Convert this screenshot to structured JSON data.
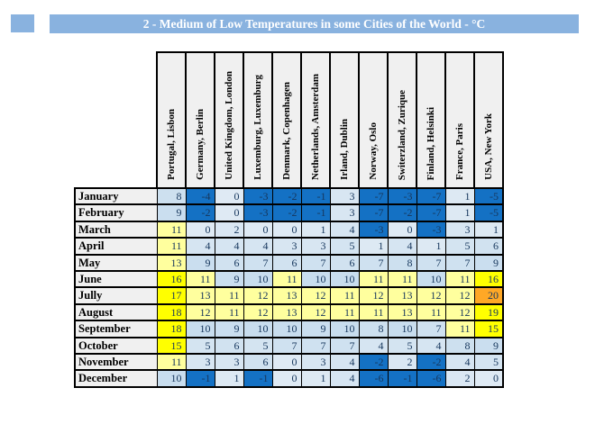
{
  "title_bar": {
    "text": "2 - Medium of Low Temperatures in some Cities of the World - °C",
    "bg_color": "#89B2DF",
    "text_color": "#FFFFFF"
  },
  "decor": {
    "corner_rect_color": "#89B2DF"
  },
  "chart_data": {
    "type": "heatmap",
    "title": "2 - Medium of Low Temperatures in some Cities of the World - °C",
    "unit": "°C",
    "columns": [
      "Portugal, Lisbon",
      "Germany, Berlin",
      "United Kingdom, London",
      "Luxemburg, Luxemburg",
      "Denmark, Copenhagen",
      "Netherlands, Amsterdam",
      "Irland, Dublin",
      "Norway, Oslo",
      "Switerzland, Zurique",
      "Finland, Helsinki",
      "France, Paris",
      "USA, New York"
    ],
    "rows": [
      "January",
      "February",
      "March",
      "April",
      "May",
      "June",
      "Jully",
      "August",
      "September",
      "October",
      "November",
      "December"
    ],
    "values": [
      [
        8,
        -4,
        0,
        -3,
        -2,
        -1,
        3,
        -7,
        -3,
        -7,
        1,
        -5
      ],
      [
        9,
        -2,
        0,
        -3,
        -2,
        -1,
        3,
        -7,
        -2,
        -7,
        1,
        -5
      ],
      [
        11,
        0,
        2,
        0,
        0,
        1,
        4,
        -3,
        0,
        -3,
        3,
        1
      ],
      [
        11,
        4,
        4,
        4,
        3,
        3,
        5,
        1,
        4,
        1,
        5,
        6
      ],
      [
        13,
        9,
        6,
        7,
        6,
        7,
        6,
        7,
        8,
        7,
        7,
        9
      ],
      [
        16,
        11,
        9,
        10,
        11,
        10,
        10,
        11,
        11,
        10,
        11,
        16
      ],
      [
        17,
        13,
        11,
        12,
        13,
        12,
        11,
        12,
        13,
        12,
        12,
        20
      ],
      [
        18,
        12,
        11,
        12,
        13,
        12,
        11,
        11,
        13,
        11,
        12,
        19
      ],
      [
        18,
        10,
        9,
        10,
        10,
        9,
        10,
        8,
        10,
        7,
        11,
        15
      ],
      [
        15,
        5,
        6,
        5,
        7,
        7,
        7,
        4,
        5,
        4,
        8,
        9
      ],
      [
        11,
        3,
        3,
        6,
        0,
        3,
        4,
        -2,
        2,
        -2,
        4,
        5
      ],
      [
        10,
        -1,
        1,
        -1,
        0,
        1,
        4,
        -6,
        -1,
        -6,
        2,
        0
      ]
    ],
    "palette": {
      "negative": "#1471C4",
      "low_start": "#DFEAF4",
      "low_end": "#C8DDEE",
      "mild": "#FFFF9E",
      "warm": "#FFFF00",
      "hot": "#FFA826",
      "header_bg": "#F0F0F0",
      "rules": "v<0 dark blue; 0-10 pale blue; 11-14 pale yellow; 15-19 yellow; 20+ orange"
    },
    "layout": {
      "grid": true,
      "column_header_orientation": "vertical-bottom-up",
      "value_alignment": "right"
    }
  }
}
